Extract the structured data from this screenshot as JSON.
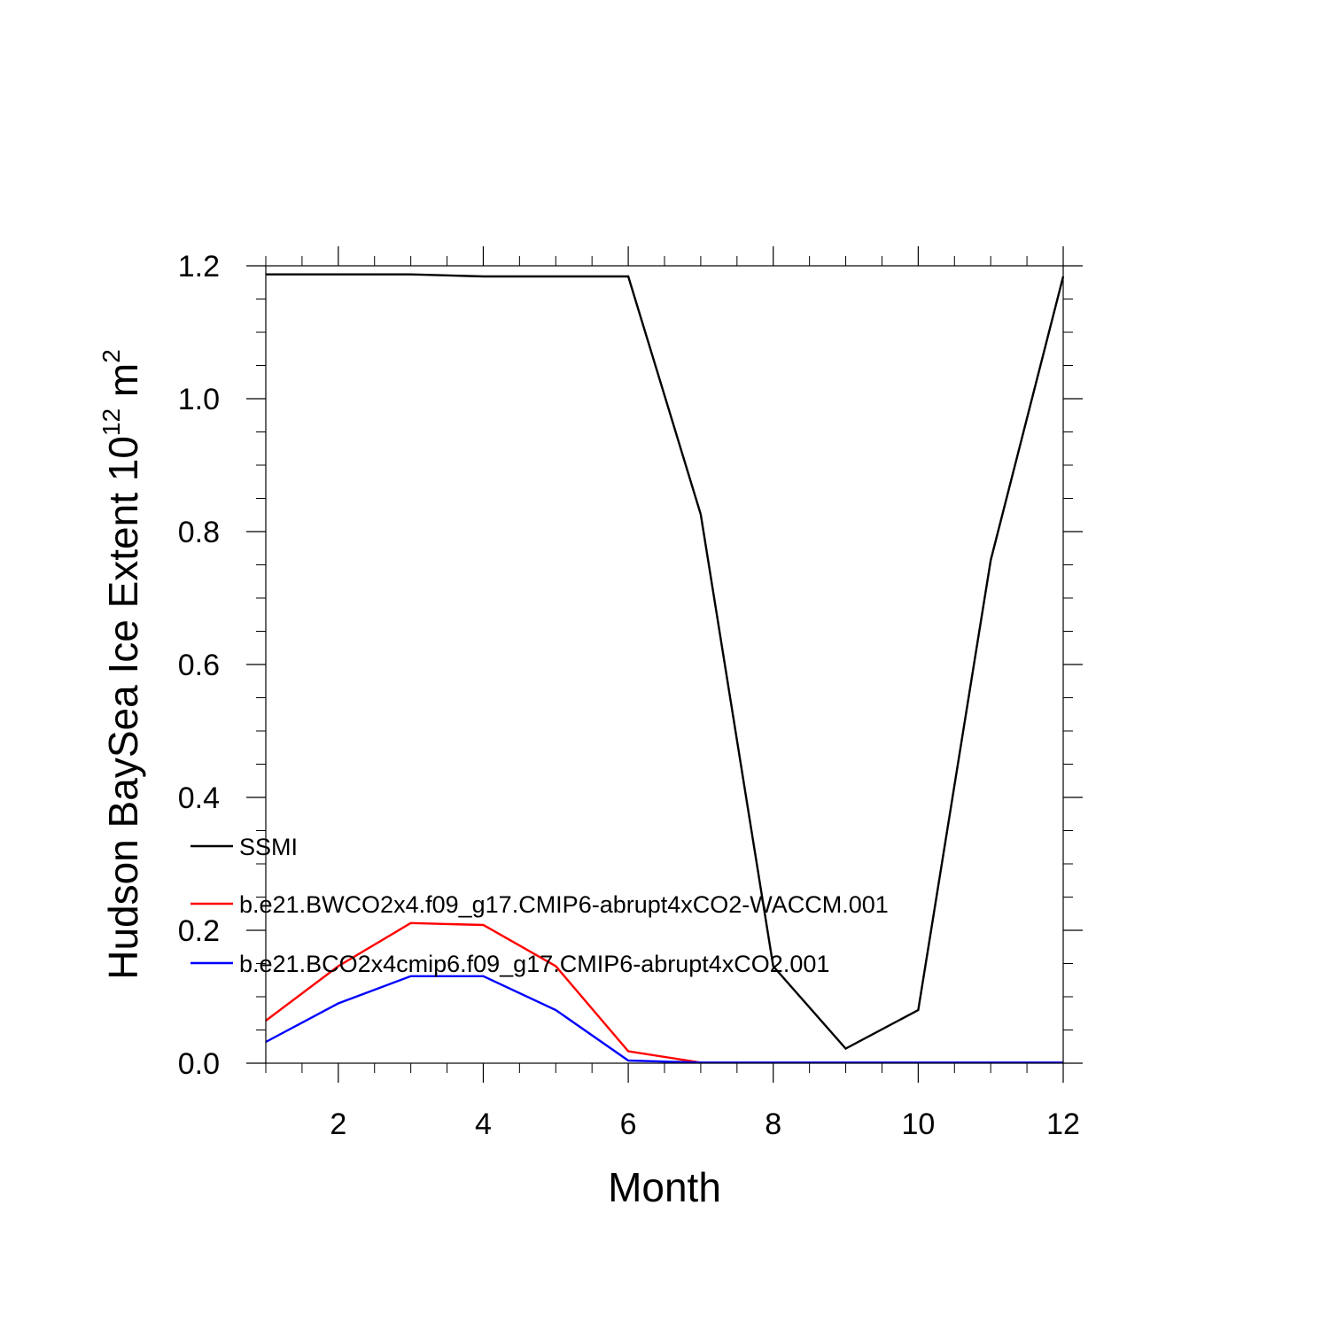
{
  "chart_data": {
    "type": "line",
    "title": "",
    "xlabel": "Month",
    "ylabel": {
      "text": "Hudson BaySea Ice Extent 10",
      "superscript": "12",
      "unit": " m",
      "unit_superscript": "2"
    },
    "xlim": [
      1,
      12
    ],
    "ylim": [
      0.0,
      1.2
    ],
    "x_ticks": [
      2,
      4,
      6,
      8,
      10,
      12
    ],
    "x_tick_labels": [
      "2",
      "4",
      "6",
      "8",
      "10",
      "12"
    ],
    "y_ticks": [
      0.0,
      0.2,
      0.4,
      0.6,
      0.8,
      1.0,
      1.2
    ],
    "y_tick_labels": [
      "0.0",
      "0.2",
      "0.4",
      "0.6",
      "0.8",
      "1.0",
      "1.2"
    ],
    "grid": false,
    "legend_position": "lower-left",
    "x": [
      1,
      2,
      3,
      4,
      5,
      6,
      7,
      8,
      9,
      10,
      11,
      12
    ],
    "series": [
      {
        "name": "SSMI",
        "color": "#000000",
        "values": [
          1.187,
          1.187,
          1.187,
          1.184,
          1.184,
          1.184,
          0.826,
          0.146,
          0.022,
          0.08,
          0.757,
          1.184
        ]
      },
      {
        "name": "b.e21.BWCO2x4.f09_g17.CMIP6-abrupt4xCO2-WACCM.001",
        "color": "#ff0000",
        "values": [
          0.064,
          0.146,
          0.211,
          0.208,
          0.146,
          0.018,
          0.001,
          0.001,
          0.001,
          0.001,
          0.001,
          0.001
        ]
      },
      {
        "name": "b.e21.BCO2x4cmip6.f09_g17.CMIP6-abrupt4xCO2.001",
        "color": "#0000ff",
        "values": [
          0.032,
          0.09,
          0.131,
          0.131,
          0.08,
          0.004,
          0.001,
          0.001,
          0.001,
          0.001,
          0.001,
          0.001
        ]
      }
    ]
  }
}
